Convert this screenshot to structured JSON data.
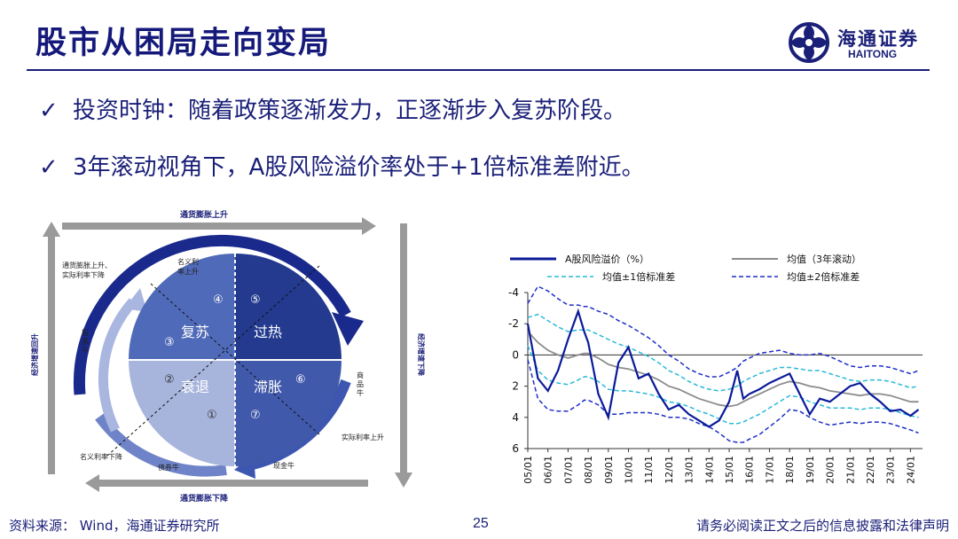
{
  "header": {
    "title": "股市从困局走向变局",
    "logo_cn": "海通证券",
    "logo_en": "HAITONG"
  },
  "bullets": [
    {
      "check": "✓",
      "text": "投资时钟：随着政策逐渐发力，正逐渐步入复苏阶段。"
    },
    {
      "check": "✓",
      "text": "3年滚动视角下，A股风险溢价率处于+1倍标准差附近。"
    }
  ],
  "clock": {
    "top": "通货膨胀上升",
    "bottom": "通货膨胀下降",
    "left": "经济增速回升",
    "right": "经济增速下降",
    "top_left_note_1": "通货膨胀上升、",
    "top_left_note_2": "实际利率下降",
    "top_center_note_1": "名义利",
    "top_center_note_2": "率上升",
    "stock_bull": [
      "股",
      "票",
      "牛"
    ],
    "commodity_bull": [
      "商",
      "品",
      "牛"
    ],
    "nominal_down": "名义利率下降",
    "bond_bull": "债券牛",
    "cash_bull": "现金牛",
    "real_up": "实际利率上升",
    "quadrants": {
      "recovery": "复苏",
      "overheat": "过热",
      "recession": "衰退",
      "stagflation": "滞胀"
    },
    "numbers": [
      "①",
      "②",
      "③",
      "④",
      "⑤",
      "⑥",
      "⑦"
    ]
  },
  "chart_data": {
    "type": "line",
    "legend": [
      "A股风险溢价（%）",
      "均值（3年滚动）",
      "均值±1倍标准差",
      "均值±2倍标准差"
    ],
    "x_ticks": [
      "05/01",
      "06/01",
      "07/01",
      "08/01",
      "09/01",
      "10/01",
      "11/01",
      "12/01",
      "13/01",
      "14/01",
      "15/01",
      "16/01",
      "17/01",
      "18/01",
      "19/01",
      "20/01",
      "21/01",
      "22/01",
      "23/01",
      "24/01"
    ],
    "y_ticks": [
      "-4",
      "-2",
      "0",
      "2",
      "4",
      "6"
    ],
    "ylim": [
      -4,
      6
    ],
    "y_inverted": true,
    "x": [
      2005.0,
      2005.5,
      2006.0,
      2006.5,
      2007.0,
      2007.5,
      2007.8,
      2008.0,
      2008.5,
      2009.0,
      2009.5,
      2010.0,
      2010.5,
      2011.0,
      2011.5,
      2012.0,
      2012.5,
      2013.0,
      2013.5,
      2014.0,
      2014.5,
      2015.0,
      2015.4,
      2015.7,
      2016.0,
      2016.5,
      2017.0,
      2017.5,
      2018.0,
      2018.5,
      2019.0,
      2019.5,
      2020.0,
      2020.5,
      2021.0,
      2021.5,
      2022.0,
      2022.5,
      2023.0,
      2023.5,
      2024.0,
      2024.4
    ],
    "series": [
      {
        "name": "A股风险溢价（%）",
        "values": [
          -2.0,
          1.5,
          2.3,
          1.0,
          -1.0,
          -2.8,
          -1.5,
          -0.8,
          2.5,
          4.0,
          0.5,
          -0.5,
          1.5,
          1.2,
          2.5,
          3.5,
          3.2,
          3.8,
          4.2,
          4.6,
          4.2,
          3.0,
          1.0,
          2.8,
          2.5,
          2.2,
          1.8,
          1.5,
          1.2,
          2.5,
          3.8,
          2.8,
          3.0,
          2.5,
          2.0,
          1.8,
          2.5,
          3.0,
          3.6,
          3.5,
          3.9,
          3.5
        ]
      },
      {
        "name": "均值（3年滚动）",
        "values": [
          -1.5,
          -0.8,
          -0.3,
          0.0,
          0.2,
          0.0,
          -0.1,
          -0.1,
          0.2,
          0.6,
          0.8,
          0.9,
          1.1,
          1.3,
          1.6,
          2.0,
          2.2,
          2.5,
          2.8,
          3.0,
          3.2,
          3.3,
          3.2,
          3.0,
          2.8,
          2.5,
          2.2,
          1.9,
          1.7,
          1.8,
          2.0,
          2.1,
          2.3,
          2.4,
          2.5,
          2.6,
          2.5,
          2.5,
          2.6,
          2.8,
          3.0,
          3.0
        ]
      },
      {
        "name": "均值±1倍标准差(上)",
        "values": [
          -0.6,
          1.0,
          1.6,
          1.8,
          1.9,
          1.6,
          1.4,
          1.4,
          1.7,
          2.2,
          2.3,
          2.3,
          2.4,
          2.5,
          2.7,
          3.0,
          3.1,
          3.3,
          3.6,
          3.8,
          4.1,
          4.4,
          4.4,
          4.3,
          4.1,
          3.8,
          3.4,
          3.0,
          2.6,
          2.7,
          3.0,
          3.2,
          3.4,
          3.4,
          3.4,
          3.5,
          3.4,
          3.4,
          3.5,
          3.7,
          3.9,
          4.0
        ]
      },
      {
        "name": "均值±1倍标准差(下)",
        "values": [
          -2.4,
          -2.6,
          -2.2,
          -1.8,
          -1.5,
          -1.6,
          -1.6,
          -1.6,
          -1.3,
          -1.0,
          -0.7,
          -0.5,
          -0.2,
          0.1,
          0.5,
          1.0,
          1.3,
          1.7,
          2.0,
          2.2,
          2.3,
          2.2,
          2.0,
          1.7,
          1.5,
          1.2,
          1.0,
          0.8,
          0.8,
          0.9,
          1.0,
          1.0,
          1.2,
          1.4,
          1.6,
          1.7,
          1.6,
          1.6,
          1.7,
          1.9,
          2.1,
          2.0
        ]
      },
      {
        "name": "均值±2倍标准差(上)",
        "values": [
          0.3,
          2.8,
          3.5,
          3.6,
          3.6,
          3.2,
          2.9,
          2.9,
          3.2,
          3.8,
          3.8,
          3.7,
          3.7,
          3.7,
          3.8,
          4.0,
          4.0,
          4.1,
          4.4,
          4.6,
          5.0,
          5.5,
          5.6,
          5.6,
          5.4,
          5.1,
          4.6,
          4.1,
          3.5,
          3.6,
          4.0,
          4.3,
          4.5,
          4.4,
          4.3,
          4.4,
          4.3,
          4.3,
          4.4,
          4.6,
          4.8,
          5.0
        ]
      },
      {
        "name": "均值±2倍标准差(下)",
        "values": [
          -3.3,
          -4.4,
          -4.1,
          -3.6,
          -3.2,
          -3.2,
          -3.1,
          -3.1,
          -2.8,
          -2.6,
          -2.2,
          -1.9,
          -1.5,
          -1.1,
          -0.6,
          0.0,
          0.4,
          0.9,
          1.2,
          1.4,
          1.4,
          1.1,
          0.8,
          0.4,
          0.2,
          -0.1,
          -0.2,
          -0.3,
          -0.1,
          0.0,
          0.0,
          -0.1,
          0.1,
          0.4,
          0.7,
          0.8,
          0.7,
          0.7,
          0.8,
          1.0,
          1.2,
          1.0
        ]
      }
    ]
  },
  "footer": {
    "source": "资料来源：  Wind，海通证券研究所",
    "page": "25",
    "disclaimer": "请务必阅读正文之后的信息披露和法律声明"
  },
  "colors": {
    "navy": "#1a1f78",
    "main_line": "#0a1a9a",
    "mean_line": "#8c8c8c",
    "std1": "#29b9d8",
    "std2": "#1f2fc8"
  }
}
